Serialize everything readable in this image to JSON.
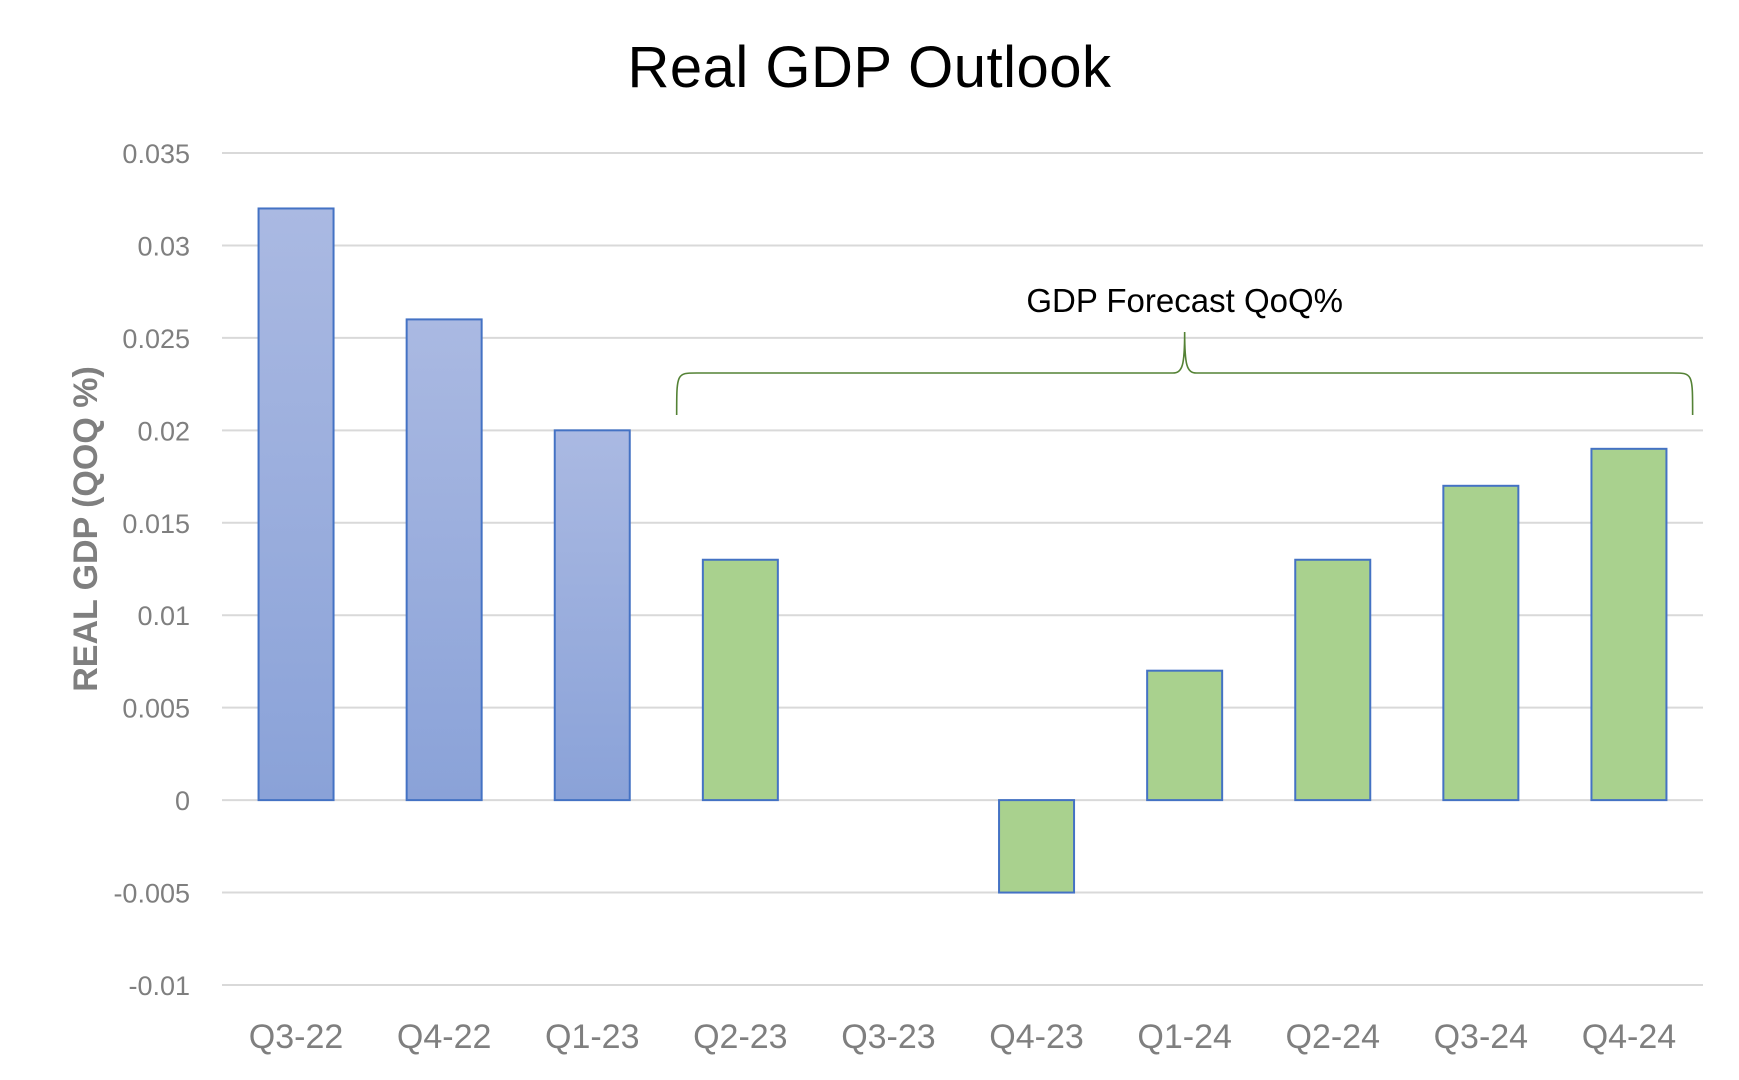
{
  "chart_data": {
    "type": "bar",
    "title": "Real GDP Outlook",
    "xlabel": "",
    "ylabel": "REAL GDP (QOQ %)",
    "categories": [
      "Q3-22",
      "Q4-22",
      "Q1-23",
      "Q2-23",
      "Q3-23",
      "Q4-23",
      "Q1-24",
      "Q2-24",
      "Q3-24",
      "Q4-24"
    ],
    "values": [
      0.032,
      0.026,
      0.02,
      0.013,
      0,
      -0.005,
      0.007,
      0.013,
      0.017,
      0.019
    ],
    "ylim": [
      -0.01,
      0.035
    ],
    "yticks": [
      "0.035",
      "0.03",
      "0.025",
      "0.02",
      "0.015",
      "0.01",
      "0.005",
      "0",
      "-0.005",
      "-0.01"
    ],
    "ytick_values": [
      0.035,
      0.03,
      0.025,
      0.02,
      0.015,
      0.01,
      0.005,
      0,
      -0.005,
      -0.01
    ],
    "grid": true,
    "legend": "none",
    "annotation": {
      "text": "GDP Forecast QoQ%",
      "spans_categories": [
        "Q2-23",
        "Q4-24"
      ]
    },
    "colors": {
      "actual_bar_top": "#aab9e2",
      "actual_bar_bottom": "#8aa2d8",
      "forecast_bar": "#a9d18e",
      "bar_border": "#4472c4",
      "gridline": "#d9d9d9",
      "brace": "#548235",
      "axis_text": "#7f7f7f"
    },
    "actual_count": 3
  }
}
